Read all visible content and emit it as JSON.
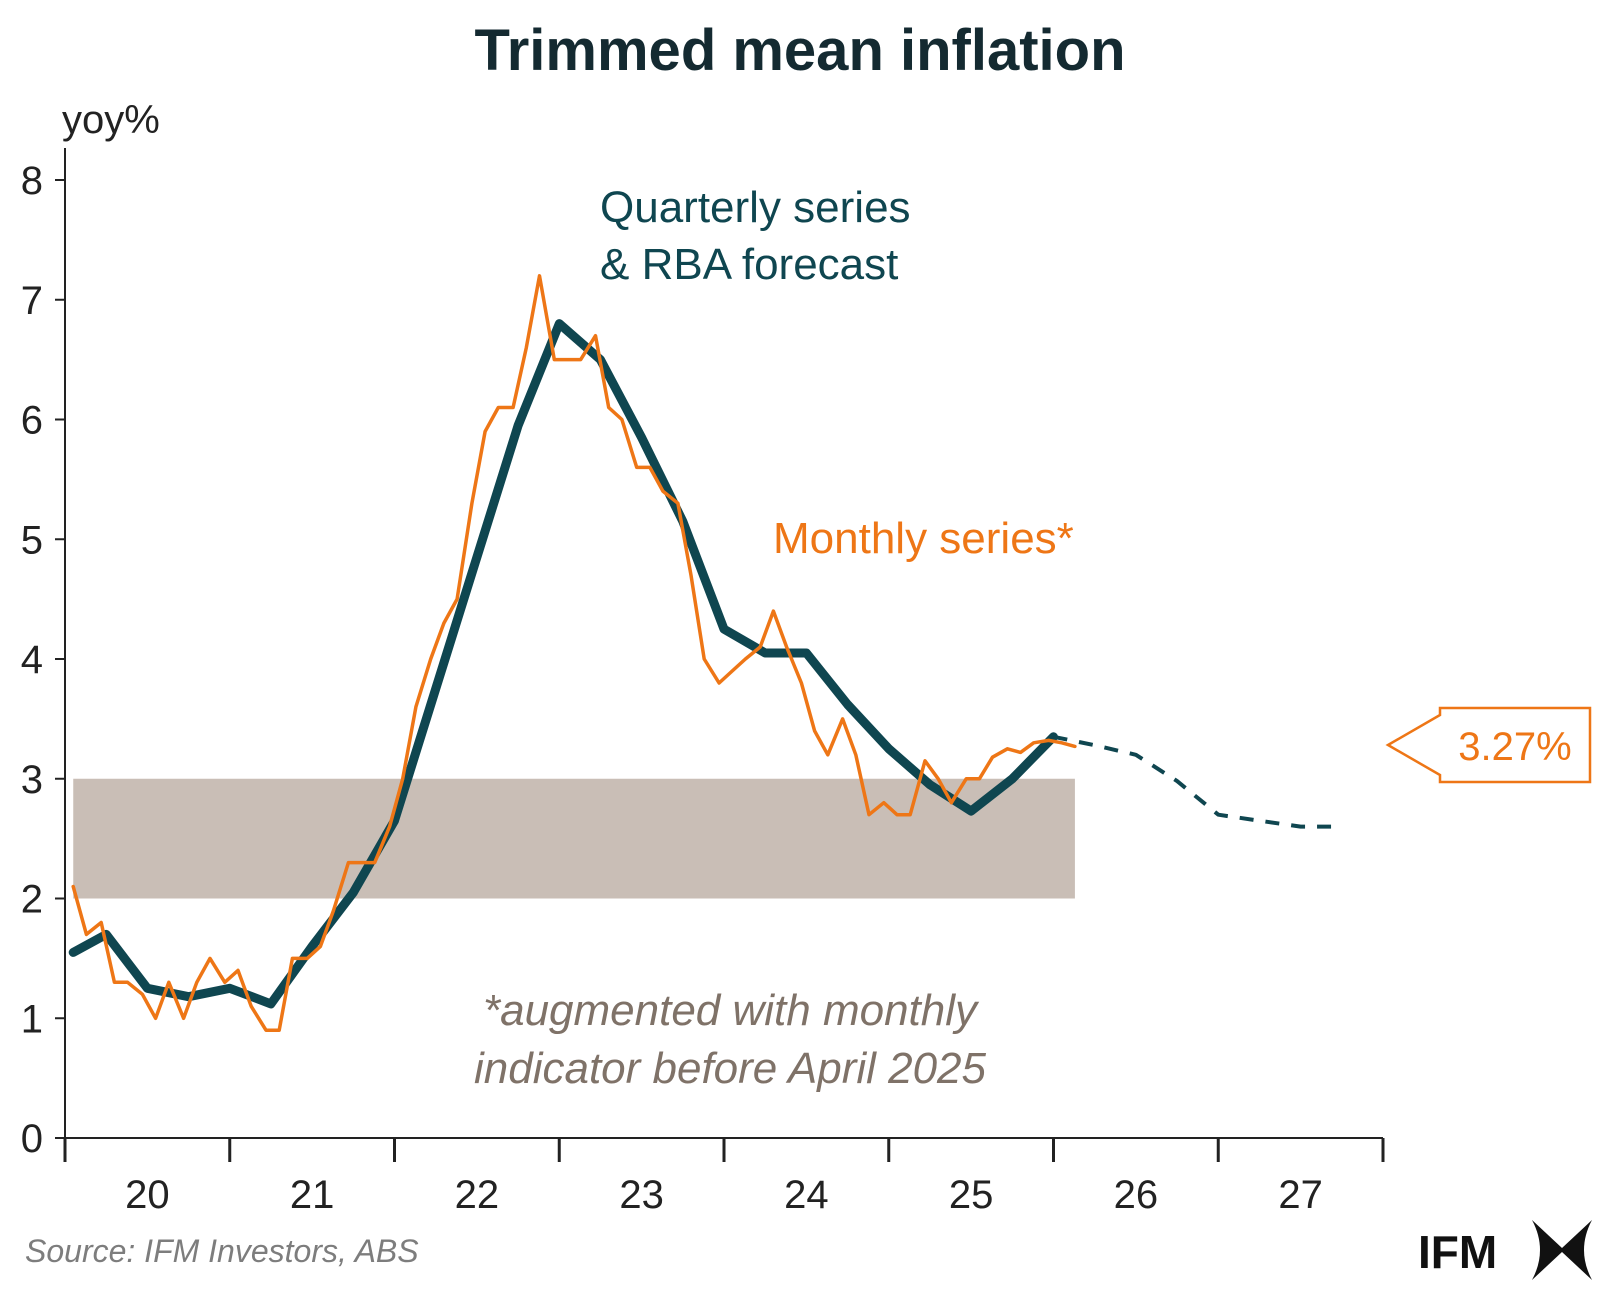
{
  "chart_data": {
    "type": "line",
    "title": "Trimmed mean inflation",
    "ylabel": "yoy%",
    "ylim": [
      0,
      8
    ],
    "yticks": [
      0,
      1,
      2,
      3,
      4,
      5,
      6,
      7,
      8
    ],
    "xlim": [
      2019.5,
      2027.5
    ],
    "xticks": [
      "20",
      "21",
      "22",
      "23",
      "24",
      "25",
      "26",
      "27"
    ],
    "target_band": [
      2,
      3
    ],
    "target_band_x": [
      2019.55,
      2025.63
    ],
    "grid": false,
    "series": [
      {
        "name": "Quarterly series & RBA forecast",
        "color": "#0f4650",
        "x": [
          2019.55,
          2019.75,
          2020.0,
          2020.25,
          2020.5,
          2020.75,
          2021.0,
          2021.25,
          2021.5,
          2021.75,
          2022.0,
          2022.25,
          2022.5,
          2022.75,
          2023.0,
          2023.25,
          2023.5,
          2023.75,
          2024.0,
          2024.25,
          2024.5,
          2024.75,
          2025.0,
          2025.25,
          2025.5
        ],
        "values": [
          1.55,
          1.7,
          1.25,
          1.18,
          1.25,
          1.12,
          1.6,
          2.05,
          2.65,
          3.75,
          4.85,
          5.95,
          6.8,
          6.5,
          5.85,
          5.15,
          4.25,
          4.05,
          4.05,
          3.62,
          3.25,
          2.95,
          2.73,
          3.0,
          3.35
        ]
      },
      {
        "name": "RBA forecast",
        "color": "#0f4650",
        "dashed": true,
        "x": [
          2025.5,
          2025.75,
          2026.0,
          2026.25,
          2026.5,
          2026.75,
          2027.0,
          2027.25
        ],
        "values": [
          3.35,
          3.28,
          3.2,
          2.98,
          2.7,
          2.65,
          2.6,
          2.6
        ]
      },
      {
        "name": "Monthly series*",
        "color": "#ee7616",
        "x": [
          2019.55,
          2019.63,
          2019.72,
          2019.8,
          2019.88,
          2019.97,
          2020.05,
          2020.13,
          2020.22,
          2020.3,
          2020.38,
          2020.47,
          2020.55,
          2020.63,
          2020.72,
          2020.8,
          2020.88,
          2020.97,
          2021.05,
          2021.13,
          2021.22,
          2021.3,
          2021.38,
          2021.47,
          2021.55,
          2021.63,
          2021.72,
          2021.8,
          2021.88,
          2021.97,
          2022.05,
          2022.13,
          2022.22,
          2022.3,
          2022.38,
          2022.47,
          2022.55,
          2022.63,
          2022.72,
          2022.8,
          2022.88,
          2022.97,
          2023.05,
          2023.13,
          2023.22,
          2023.3,
          2023.38,
          2023.47,
          2023.55,
          2023.63,
          2023.72,
          2023.8,
          2023.88,
          2023.97,
          2024.05,
          2024.13,
          2024.22,
          2024.3,
          2024.38,
          2024.47,
          2024.55,
          2024.63,
          2024.72,
          2024.8,
          2024.88,
          2024.97,
          2025.05,
          2025.13,
          2025.22,
          2025.3,
          2025.38,
          2025.47,
          2025.55,
          2025.63
        ],
        "values": [
          2.1,
          1.7,
          1.8,
          1.3,
          1.3,
          1.2,
          1.0,
          1.3,
          1.0,
          1.3,
          1.5,
          1.3,
          1.4,
          1.1,
          0.9,
          0.9,
          1.5,
          1.5,
          1.6,
          1.9,
          2.3,
          2.3,
          2.3,
          2.6,
          3.0,
          3.6,
          4.0,
          4.3,
          4.5,
          5.3,
          5.9,
          6.1,
          6.1,
          6.6,
          7.2,
          6.5,
          6.5,
          6.5,
          6.7,
          6.1,
          6.0,
          5.6,
          5.6,
          5.4,
          5.3,
          4.7,
          4.0,
          3.8,
          3.9,
          4.0,
          4.1,
          4.4,
          4.1,
          3.8,
          3.4,
          3.2,
          3.5,
          3.2,
          2.7,
          2.8,
          2.7,
          2.7,
          3.15,
          3.0,
          2.8,
          3.0,
          3.0,
          3.18,
          3.25,
          3.22,
          3.3,
          3.32,
          3.3,
          3.27
        ]
      }
    ],
    "annotations": {
      "quarterly_line1": "Quarterly series",
      "quarterly_line2": "& RBA forecast",
      "monthly": "Monthly series*",
      "note_line1": "*augmented with monthly",
      "note_line2": "indicator before April 2025",
      "callout": "3.27%"
    },
    "source": "Source: IFM Investors, ABS",
    "logo": "IFM",
    "colors": {
      "quarterly": "#0f4650",
      "monthly": "#ee7616",
      "band": "#c9beb6",
      "note": "#7f7268"
    }
  }
}
